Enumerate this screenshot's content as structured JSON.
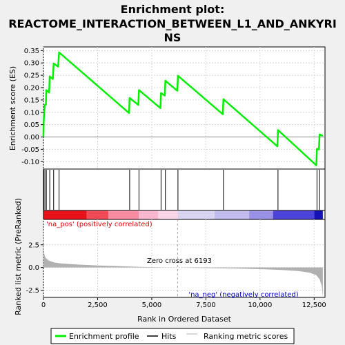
{
  "chart_data": {
    "type": "line",
    "title_line1": "Enrichment plot:",
    "title_line2": "REACTOME_INTERACTION_BETWEEN_L1_AND_ANKYRI",
    "title_line3": "NS",
    "es_ylabel": "Enrichment score (ES)",
    "metric_ylabel": "Ranked list metric (PreRanked)",
    "xlabel": "Rank in Ordered Dataset",
    "x_range": [
      0,
      13000
    ],
    "es_ylim": [
      -0.13,
      0.365
    ],
    "metric_ylim": [
      -3.3,
      5.3
    ],
    "x_ticks": [
      0,
      2500,
      5000,
      7500,
      10000,
      12500
    ],
    "x_tick_labels": [
      "0",
      "2,500",
      "5,000",
      "7,500",
      "10,000",
      "12,500"
    ],
    "es_ticks": [
      -0.1,
      -0.05,
      0.0,
      0.05,
      0.1,
      0.15,
      0.2,
      0.25,
      0.3,
      0.35
    ],
    "es_tick_labels": [
      "-0.10",
      "-0.05",
      "0.00",
      "0.05",
      "0.10",
      "0.15",
      "0.20",
      "0.25",
      "0.30",
      "0.35"
    ],
    "metric_ticks": [
      -2.5,
      0.0,
      2.5
    ],
    "metric_tick_labels": [
      "-2.5",
      "0.0",
      "2.5"
    ],
    "enrichment_profile": [
      [
        0,
        0.0
      ],
      [
        10,
        0.06
      ],
      [
        30,
        0.09
      ],
      [
        60,
        0.13
      ],
      [
        110,
        0.13
      ],
      [
        130,
        0.19
      ],
      [
        260,
        0.18
      ],
      [
        290,
        0.245
      ],
      [
        430,
        0.235
      ],
      [
        470,
        0.298
      ],
      [
        680,
        0.285
      ],
      [
        720,
        0.343
      ],
      [
        3950,
        0.097
      ],
      [
        3980,
        0.158
      ],
      [
        4380,
        0.13
      ],
      [
        4410,
        0.19
      ],
      [
        5400,
        0.117
      ],
      [
        5430,
        0.178
      ],
      [
        5600,
        0.168
      ],
      [
        5630,
        0.228
      ],
      [
        6180,
        0.187
      ],
      [
        6210,
        0.248
      ],
      [
        8280,
        0.092
      ],
      [
        8310,
        0.153
      ],
      [
        10800,
        -0.038
      ],
      [
        10830,
        0.028
      ],
      [
        12600,
        -0.115
      ],
      [
        12630,
        -0.048
      ],
      [
        12720,
        -0.05
      ],
      [
        12750,
        0.01
      ],
      [
        12900,
        0.005
      ]
    ],
    "hit_ranks": [
      30,
      110,
      130,
      290,
      470,
      720,
      3980,
      4410,
      5430,
      5630,
      6210,
      8310,
      10830,
      12630,
      12750
    ],
    "metric_curve": [
      [
        0,
        5.0
      ],
      [
        15,
        2.0
      ],
      [
        40,
        1.45
      ],
      [
        100,
        1.05
      ],
      [
        250,
        0.75
      ],
      [
        500,
        0.55
      ],
      [
        800,
        0.45
      ],
      [
        1500,
        0.33
      ],
      [
        2500,
        0.22
      ],
      [
        3500,
        0.14
      ],
      [
        4500,
        0.07
      ],
      [
        5500,
        0.02
      ],
      [
        6193,
        0.0
      ],
      [
        7000,
        -0.04
      ],
      [
        8000,
        -0.08
      ],
      [
        9000,
        -0.13
      ],
      [
        10000,
        -0.18
      ],
      [
        11000,
        -0.27
      ],
      [
        11800,
        -0.4
      ],
      [
        12300,
        -0.58
      ],
      [
        12600,
        -0.85
      ],
      [
        12750,
        -1.3
      ],
      [
        12850,
        -2.0
      ],
      [
        12900,
        -3.3
      ]
    ],
    "heatmap_bands": [
      {
        "from": 0,
        "to": 2000,
        "color": "#e8111a"
      },
      {
        "from": 2000,
        "to": 3000,
        "color": "#ef4a55"
      },
      {
        "from": 3000,
        "to": 4400,
        "color": "#f78ca0"
      },
      {
        "from": 4400,
        "to": 5300,
        "color": "#f9b6cf"
      },
      {
        "from": 5300,
        "to": 6200,
        "color": "#fbd5e8"
      },
      {
        "from": 6200,
        "to": 7900,
        "color": "#d9d4f2"
      },
      {
        "from": 7900,
        "to": 9500,
        "color": "#c1bbee"
      },
      {
        "from": 9500,
        "to": 10600,
        "color": "#9a91e6"
      },
      {
        "from": 10600,
        "to": 12500,
        "color": "#4d43d9"
      },
      {
        "from": 12500,
        "to": 12900,
        "color": "#1512b8"
      }
    ],
    "zero_cross_rank": 6193,
    "annotations": {
      "pos_label": "'na_pos' (positively correlated)",
      "neg_label": "'na_neg' (negatively correlated)",
      "zero_cross_label": "Zero cross at 6193"
    },
    "legend": {
      "placement": "bottom",
      "entries": [
        "Enrichment profile",
        "Hits",
        "Ranking metric scores"
      ]
    },
    "colors": {
      "profile": "#00ee00",
      "hits": "#000000",
      "metric_fill": "#b0b0b0",
      "pos_text": "#dd0000",
      "neg_text": "#0000cc",
      "zero_line": "#a0a0a0"
    }
  }
}
